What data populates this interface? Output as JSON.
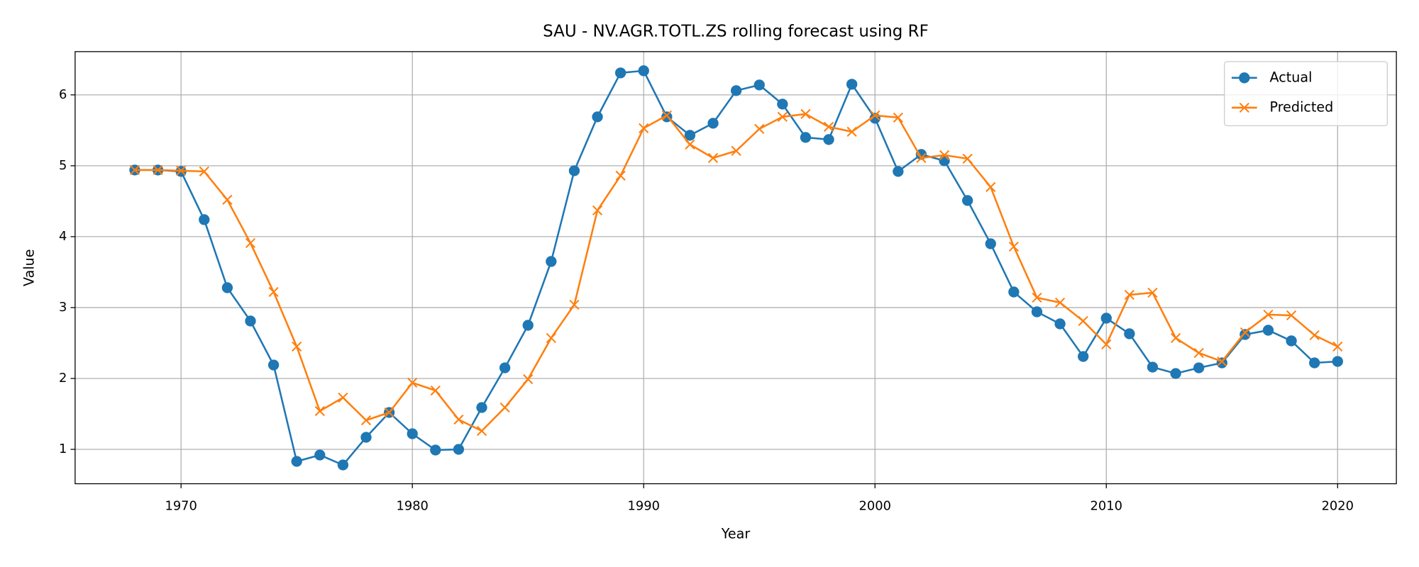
{
  "chart_data": {
    "type": "line",
    "title": "SAU - NV.AGR.TOTL.ZS rolling forecast using RF",
    "x_label": "Year",
    "y_label": "Value",
    "x": [
      1968,
      1969,
      1970,
      1971,
      1972,
      1973,
      1974,
      1975,
      1976,
      1977,
      1978,
      1979,
      1980,
      1981,
      1982,
      1983,
      1984,
      1985,
      1986,
      1987,
      1988,
      1989,
      1990,
      1991,
      1992,
      1993,
      1994,
      1995,
      1996,
      1997,
      1998,
      1999,
      2000,
      2001,
      2002,
      2003,
      2004,
      2005,
      2006,
      2007,
      2008,
      2009,
      2010,
      2011,
      2012,
      2013,
      2014,
      2015,
      2016,
      2017,
      2018,
      2019,
      2020
    ],
    "series": [
      {
        "name": "Actual",
        "color": "#1f77b4",
        "marker": "o",
        "values": [
          4.94,
          4.94,
          4.92,
          4.24,
          3.28,
          2.81,
          2.19,
          0.83,
          0.92,
          0.78,
          1.17,
          1.52,
          1.22,
          0.99,
          1.0,
          1.59,
          2.15,
          2.75,
          3.65,
          4.93,
          5.69,
          6.31,
          6.34,
          5.69,
          5.43,
          5.6,
          6.06,
          6.14,
          5.87,
          5.4,
          5.37,
          6.15,
          5.67,
          4.92,
          5.16,
          5.07,
          4.51,
          3.9,
          3.22,
          2.94,
          2.77,
          2.31,
          2.85,
          2.63,
          2.16,
          2.07,
          2.15,
          2.22,
          2.62,
          2.68,
          2.53,
          2.22,
          2.24
        ]
      },
      {
        "name": "Predicted",
        "color": "#ff7f0e",
        "marker": "x",
        "values": [
          4.94,
          4.94,
          4.93,
          4.92,
          4.52,
          3.91,
          3.22,
          2.45,
          1.54,
          1.73,
          1.41,
          1.52,
          1.94,
          1.83,
          1.42,
          1.26,
          1.59,
          1.99,
          2.57,
          3.04,
          4.37,
          4.86,
          5.53,
          5.71,
          5.3,
          5.11,
          5.21,
          5.52,
          5.69,
          5.73,
          5.55,
          5.48,
          5.71,
          5.68,
          5.11,
          5.15,
          5.1,
          4.7,
          3.86,
          3.14,
          3.07,
          2.81,
          2.48,
          3.18,
          3.21,
          2.57,
          2.36,
          2.24,
          2.65,
          2.9,
          2.89,
          2.61,
          2.45
        ]
      }
    ],
    "xlim": [
      1965.42,
      2022.54
    ],
    "xticks": [
      1970,
      1980,
      1990,
      2000,
      2010,
      2020
    ],
    "ylim": [
      0.515,
      6.61
    ],
    "yticks": [
      1,
      2,
      3,
      4,
      5,
      6
    ],
    "grid": true,
    "legend": "upper right"
  }
}
